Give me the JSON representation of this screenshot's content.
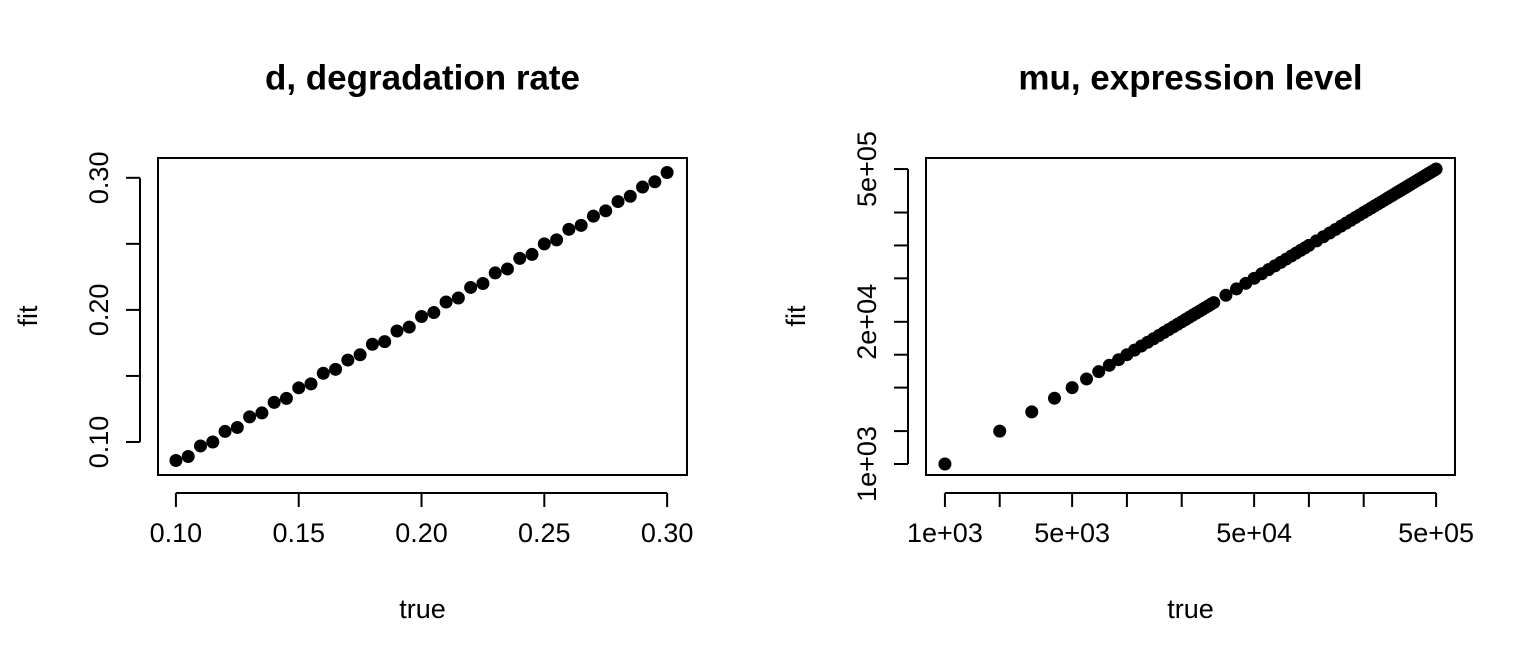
{
  "chart_data": [
    {
      "type": "scatter",
      "title": "d, degradation rate",
      "x_label": "true",
      "y_label": "fit",
      "color": "#000000",
      "log": false,
      "xlim": [
        0.0927,
        0.3081
      ],
      "ylim": [
        0.075,
        0.315
      ],
      "xticks": [
        {
          "value": 0.1,
          "label": "0.10"
        },
        {
          "value": 0.15,
          "label": "0.15"
        },
        {
          "value": 0.2,
          "label": "0.20"
        },
        {
          "value": 0.25,
          "label": "0.25"
        },
        {
          "value": 0.3,
          "label": "0.30"
        }
      ],
      "yticks": [
        {
          "value": 0.1,
          "label": "0.10"
        },
        {
          "value": 0.15,
          "label": null
        },
        {
          "value": 0.2,
          "label": "0.20"
        },
        {
          "value": 0.25,
          "label": null
        },
        {
          "value": 0.3,
          "label": "0.30"
        }
      ],
      "x": [
        0.1,
        0.105,
        0.11,
        0.115,
        0.12,
        0.125,
        0.13,
        0.135,
        0.14,
        0.145,
        0.15,
        0.155,
        0.16,
        0.165,
        0.17,
        0.175,
        0.18,
        0.185,
        0.19,
        0.195,
        0.2,
        0.205,
        0.21,
        0.215,
        0.22,
        0.225,
        0.23,
        0.235,
        0.24,
        0.245,
        0.25,
        0.255,
        0.26,
        0.265,
        0.27,
        0.275,
        0.28,
        0.285,
        0.29,
        0.295,
        0.3
      ],
      "y": [
        0.086,
        0.089,
        0.097,
        0.1,
        0.108,
        0.111,
        0.119,
        0.122,
        0.13,
        0.133,
        0.141,
        0.144,
        0.152,
        0.155,
        0.162,
        0.166,
        0.174,
        0.176,
        0.184,
        0.187,
        0.195,
        0.198,
        0.206,
        0.209,
        0.217,
        0.22,
        0.228,
        0.231,
        0.239,
        0.242,
        0.25,
        0.253,
        0.261,
        0.264,
        0.271,
        0.275,
        0.282,
        0.286,
        0.293,
        0.297,
        0.304
      ]
    },
    {
      "type": "scatter",
      "title": "mu, expression level",
      "x_label": "true",
      "y_label": "fit",
      "color": "#000000",
      "log": true,
      "xlim": [
        787,
        635000
      ],
      "ylim": [
        793,
        631000
      ],
      "xticks": [
        {
          "value": 1000,
          "label": "1e+03"
        },
        {
          "value": 2000,
          "label": null
        },
        {
          "value": 5000,
          "label": "5e+03"
        },
        {
          "value": 10000,
          "label": null
        },
        {
          "value": 20000,
          "label": null
        },
        {
          "value": 50000,
          "label": "5e+04"
        },
        {
          "value": 100000,
          "label": null
        },
        {
          "value": 200000,
          "label": null
        },
        {
          "value": 500000,
          "label": "5e+05"
        }
      ],
      "yticks": [
        {
          "value": 1000,
          "label": "1e+03"
        },
        {
          "value": 2000,
          "label": null
        },
        {
          "value": 5000,
          "label": null
        },
        {
          "value": 10000,
          "label": null
        },
        {
          "value": 20000,
          "label": "2e+04"
        },
        {
          "value": 50000,
          "label": null
        },
        {
          "value": 100000,
          "label": null
        },
        {
          "value": 200000,
          "label": null
        },
        {
          "value": 500000,
          "label": "5e+05"
        }
      ],
      "x": [
        1000,
        2000,
        3000,
        4000,
        5000,
        6000,
        7000,
        8000,
        9000,
        10000,
        11000,
        12000,
        13000,
        14000,
        15000,
        16000,
        17000,
        18000,
        19000,
        20000,
        21000,
        22000,
        23000,
        24000,
        25000,
        26000,
        27000,
        28000,
        29000,
        30000,
        35000,
        40000,
        45000,
        50000,
        55000,
        60000,
        65000,
        70000,
        75000,
        80000,
        85000,
        90000,
        95000,
        100000,
        110000,
        120000,
        130000,
        140000,
        150000,
        160000,
        170000,
        180000,
        190000,
        200000,
        210000,
        220000,
        230000,
        240000,
        250000,
        260000,
        270000,
        280000,
        290000,
        300000,
        310000,
        320000,
        330000,
        340000,
        350000,
        360000,
        370000,
        380000,
        390000,
        400000,
        410000,
        420000,
        430000,
        440000,
        450000,
        460000,
        470000,
        480000,
        490000,
        500000
      ],
      "y": [
        1000,
        2000,
        3000,
        4000,
        5000,
        6000,
        7000,
        8000,
        9000,
        10000,
        11000,
        12000,
        13000,
        14000,
        15000,
        16000,
        17000,
        18000,
        19000,
        20000,
        21000,
        22000,
        23000,
        24000,
        25000,
        26000,
        27000,
        28000,
        29000,
        30000,
        35000,
        40000,
        45000,
        50000,
        55000,
        60000,
        65000,
        70000,
        75000,
        80000,
        85000,
        90000,
        95000,
        100000,
        110000,
        120000,
        130000,
        140000,
        150000,
        160000,
        170000,
        180000,
        190000,
        200000,
        210000,
        220000,
        230000,
        240000,
        250000,
        260000,
        270000,
        280000,
        290000,
        300000,
        310000,
        320000,
        330000,
        340000,
        350000,
        360000,
        370000,
        380000,
        390000,
        400000,
        410000,
        420000,
        430000,
        440000,
        450000,
        460000,
        470000,
        480000,
        490000,
        500000
      ]
    }
  ]
}
